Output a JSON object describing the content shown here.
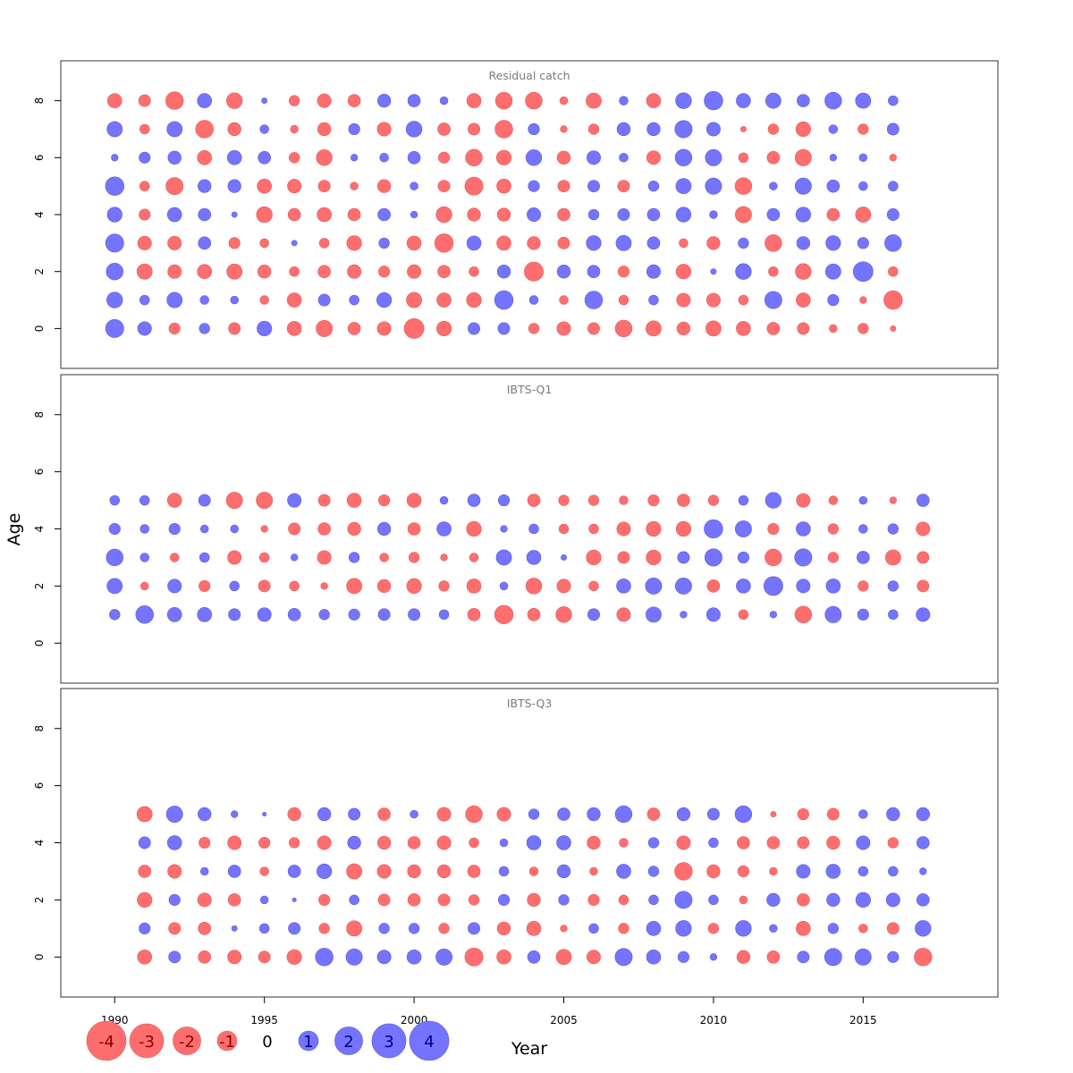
{
  "chart_data": {
    "type": "scatter",
    "encoding": "bubble: size = |residual|, red = negative, blue = positive",
    "colors": {
      "negative": "#ff6e6e",
      "positive": "#7474ff",
      "negative_stroke": "#e25a5a",
      "positive_stroke": "#5a5adc"
    },
    "xlabel": "Year",
    "ylabel": "Age",
    "xlim": [
      1988.2,
      2019.5
    ],
    "ylim": [
      -1.4,
      9.4
    ],
    "xticks": [
      "1990",
      "1995",
      "2000",
      "2005",
      "2010",
      "2015"
    ],
    "yticks": [
      "0",
      "2",
      "4",
      "6",
      "8"
    ],
    "legend": {
      "position": "bottom-left",
      "labels": [
        "-4",
        "-3",
        "-2",
        "-1",
        "0",
        "1",
        "2",
        "3",
        "4"
      ],
      "values": [
        -4,
        -3,
        -2,
        -1,
        0,
        1,
        2,
        3,
        4
      ]
    },
    "panels": [
      {
        "title": "Residual catch",
        "years": [
          1990,
          1991,
          1992,
          1993,
          1994,
          1995,
          1996,
          1997,
          1998,
          1999,
          2000,
          2001,
          2002,
          2003,
          2004,
          2005,
          2006,
          2007,
          2008,
          2009,
          2010,
          2011,
          2012,
          2013,
          2014,
          2015,
          2016
        ],
        "ages": [
          0,
          1,
          2,
          3,
          4,
          5,
          6,
          7,
          8
        ],
        "residuals": [
          [
            2.1,
            1.2,
            -0.8,
            0.7,
            -0.9,
            1.4,
            -1.3,
            -1.7,
            -1.0,
            -1.2,
            -2.5,
            -1.4,
            0.9,
            0.9,
            -0.7,
            -1.2,
            -0.9,
            -1.8,
            -1.5,
            -1.1,
            -1.5,
            -1.3,
            -1.0,
            -0.9,
            -0.4,
            -0.7,
            -0.2
          ],
          [
            1.6,
            0.6,
            1.5,
            0.5,
            0.4,
            -0.5,
            -1.3,
            0.9,
            0.6,
            1.4,
            -1.5,
            -1.3,
            -1.4,
            2.2,
            0.5,
            -0.5,
            2.0,
            -0.6,
            0.6,
            -1.2,
            -1.2,
            -0.6,
            1.9,
            -1.3,
            0.8,
            -0.3,
            -2.2
          ],
          [
            1.8,
            -1.5,
            -1.2,
            -1.3,
            -1.5,
            -1.1,
            -0.6,
            -1.0,
            -1.2,
            -0.8,
            -1.2,
            -1.0,
            -0.6,
            1.1,
            -2.3,
            1.1,
            1.0,
            -0.8,
            1.2,
            -1.4,
            0.2,
            1.6,
            -0.6,
            -1.6,
            1.5,
            2.5,
            -0.6
          ],
          [
            2.1,
            -1.2,
            -1.2,
            1.0,
            -0.8,
            -0.5,
            0.2,
            -0.6,
            -1.4,
            0.7,
            -1.3,
            -2.2,
            1.3,
            -1.3,
            -1.1,
            -0.9,
            1.4,
            1.5,
            1.0,
            -0.5,
            -1.1,
            0.7,
            -1.8,
            1.1,
            1.4,
            0.8,
            1.8
          ],
          [
            1.4,
            -0.8,
            1.3,
            1.0,
            0.2,
            -1.6,
            -1.0,
            -1.3,
            -1.0,
            1.0,
            0.3,
            -1.6,
            -1.1,
            -1.1,
            1.2,
            -1.0,
            0.7,
            0.9,
            1.0,
            1.4,
            0.4,
            -1.7,
            1.0,
            1.4,
            -1.0,
            -1.5,
            0.9
          ],
          [
            2.2,
            -0.6,
            -1.9,
            1.1,
            1.1,
            -1.3,
            -1.2,
            -0.9,
            -0.4,
            -1.1,
            0.4,
            -0.9,
            -2.1,
            -1.3,
            0.8,
            -0.9,
            0.9,
            -0.9,
            0.7,
            1.5,
            1.7,
            -1.8,
            0.4,
            1.7,
            1.0,
            0.5,
            0.6
          ],
          [
            0.3,
            0.8,
            1.1,
            -1.3,
            1.3,
            1.0,
            -0.7,
            -1.6,
            0.3,
            0.5,
            1.0,
            -0.8,
            -1.8,
            -1.4,
            1.6,
            -1.1,
            1.2,
            0.5,
            -1.2,
            1.8,
            1.7,
            -0.6,
            -1.0,
            -1.7,
            0.3,
            0.4,
            -0.3
          ],
          [
            1.5,
            -0.6,
            1.5,
            -2.0,
            -1.1,
            0.5,
            -0.4,
            -1.1,
            0.8,
            -1.2,
            1.6,
            -1.0,
            -0.9,
            -2.0,
            0.8,
            -0.3,
            -0.7,
            1.1,
            1.1,
            1.9,
            1.2,
            -0.2,
            -0.7,
            -1.4,
            0.5,
            -0.7,
            0.9
          ],
          [
            -1.3,
            -0.9,
            -2.0,
            1.3,
            -1.6,
            0.2,
            -0.7,
            -1.2,
            -1.0,
            1.1,
            1.0,
            0.4,
            -1.3,
            -1.8,
            -1.8,
            -0.4,
            -1.5,
            0.5,
            -1.3,
            1.6,
            2.2,
            1.3,
            1.5,
            1.0,
            1.8,
            1.5,
            0.6
          ]
        ]
      },
      {
        "title": "IBTS-Q1",
        "years": [
          1990,
          1991,
          1992,
          1993,
          1994,
          1995,
          1996,
          1997,
          1998,
          1999,
          2000,
          2001,
          2002,
          2003,
          2004,
          2005,
          2006,
          2007,
          2008,
          2009,
          2010,
          2011,
          2012,
          2013,
          2014,
          2015,
          2016,
          2017
        ],
        "ages": [
          1,
          2,
          3,
          4,
          5
        ],
        "residuals": [
          [
            0.7,
            2.0,
            1.3,
            1.3,
            0.9,
            1.2,
            1.0,
            0.7,
            0.8,
            0.9,
            0.9,
            0.6,
            -1.0,
            -2.2,
            -1.0,
            -1.6,
            0.9,
            -1.2,
            1.5,
            0.3,
            1.2,
            -0.6,
            0.3,
            -1.8,
            1.7,
            0.8,
            0.6,
            1.2
          ],
          [
            1.5,
            -0.4,
            1.2,
            -0.8,
            0.6,
            -0.9,
            -0.6,
            -0.3,
            -1.5,
            -1.1,
            -1.4,
            -0.7,
            -1.3,
            0.4,
            -1.6,
            -1.2,
            -0.6,
            1.3,
            1.7,
            1.7,
            -1.0,
            1.3,
            2.3,
            1.2,
            1.3,
            -0.7,
            0.7,
            -0.9
          ],
          [
            1.8,
            0.5,
            -0.5,
            0.6,
            -1.2,
            -0.6,
            0.3,
            -1.2,
            0.7,
            -0.5,
            -0.7,
            -0.3,
            -0.5,
            1.5,
            1.3,
            0.2,
            -1.4,
            -0.9,
            -1.4,
            0.9,
            1.9,
            0.8,
            -1.8,
            1.9,
            -0.7,
            1.0,
            -1.5,
            -0.9
          ],
          [
            0.8,
            0.5,
            0.8,
            0.4,
            0.4,
            -0.3,
            -0.9,
            -1.0,
            -1.1,
            1.1,
            -1.0,
            1.3,
            -1.4,
            0.3,
            0.6,
            -0.6,
            -0.6,
            -1.2,
            -1.4,
            -1.4,
            2.2,
            1.7,
            -0.8,
            1.3,
            -0.7,
            0.5,
            0.7,
            -1.2
          ],
          [
            0.6,
            0.6,
            -1.3,
            0.9,
            -1.7,
            -1.7,
            1.2,
            -0.9,
            -1.3,
            -0.8,
            -1.3,
            0.4,
            1.0,
            0.8,
            -1.0,
            -0.7,
            -0.7,
            -0.5,
            -0.8,
            -1.0,
            -0.7,
            0.6,
            1.6,
            -1.2,
            -0.5,
            0.4,
            -0.3,
            1.0
          ]
        ]
      },
      {
        "title": "IBTS-Q3",
        "years": [
          1991,
          1992,
          1993,
          1994,
          1995,
          1996,
          1997,
          1998,
          1999,
          2000,
          2001,
          2002,
          2003,
          2004,
          2005,
          2006,
          2007,
          2008,
          2009,
          2010,
          2011,
          2012,
          2013,
          2014,
          2015,
          2016,
          2017
        ],
        "ages": [
          0,
          1,
          2,
          3,
          4,
          5
        ],
        "residuals": [
          [
            -1.3,
            0.9,
            -1.0,
            -1.2,
            -0.9,
            -1.4,
            2.0,
            1.7,
            1.2,
            1.3,
            1.7,
            -2.1,
            -1.3,
            1.0,
            -1.5,
            -1.2,
            1.9,
            1.3,
            0.8,
            0.3,
            -1.1,
            -1.0,
            0.9,
            1.9,
            1.7,
            0.8,
            -2.0
          ],
          [
            0.8,
            -0.9,
            -1.0,
            0.2,
            0.6,
            0.9,
            -0.7,
            -1.5,
            0.7,
            0.7,
            -0.7,
            0.9,
            -1.1,
            -1.3,
            -0.3,
            0.6,
            -0.7,
            1.3,
            1.6,
            -0.7,
            1.6,
            0.4,
            -1.3,
            0.7,
            -0.5,
            -0.9,
            1.6
          ],
          [
            -1.4,
            0.8,
            -1.2,
            -1.0,
            0.4,
            0.1,
            -0.8,
            0.6,
            -0.9,
            -1.0,
            -0.9,
            -0.7,
            0.8,
            -1.1,
            0.7,
            -0.8,
            -0.6,
            0.6,
            1.9,
            0.6,
            -0.4,
            1.1,
            -1.0,
            1.1,
            1.4,
            1.2,
            1.0
          ],
          [
            -1.0,
            -1.2,
            0.4,
            1.0,
            -0.5,
            1.0,
            1.4,
            -1.5,
            -1.2,
            -1.1,
            -1.1,
            -1.0,
            0.6,
            -0.5,
            1.1,
            -0.4,
            1.3,
            0.7,
            -2.0,
            -1.1,
            -0.8,
            -0.4,
            1.2,
            1.3,
            0.6,
            0.6,
            0.3
          ],
          [
            0.9,
            1.3,
            -0.8,
            -1.2,
            -0.8,
            -0.7,
            -1.2,
            1.1,
            -1.1,
            -1.0,
            -1.2,
            -0.6,
            0.4,
            1.3,
            1.3,
            -1.1,
            -0.5,
            0.7,
            -1.2,
            0.6,
            -1.0,
            -1.0,
            -0.9,
            -1.1,
            1.2,
            -0.7,
            1.0
          ],
          [
            -1.5,
            1.7,
            1.1,
            0.3,
            0.1,
            -1.1,
            1.1,
            0.9,
            -1.0,
            0.4,
            -1.2,
            -1.8,
            -1.2,
            0.7,
            1.0,
            1.1,
            1.8,
            -1.0,
            1.1,
            0.9,
            1.8,
            -0.2,
            -0.8,
            -0.9,
            0.5,
            1.1,
            1.1
          ]
        ]
      }
    ]
  }
}
